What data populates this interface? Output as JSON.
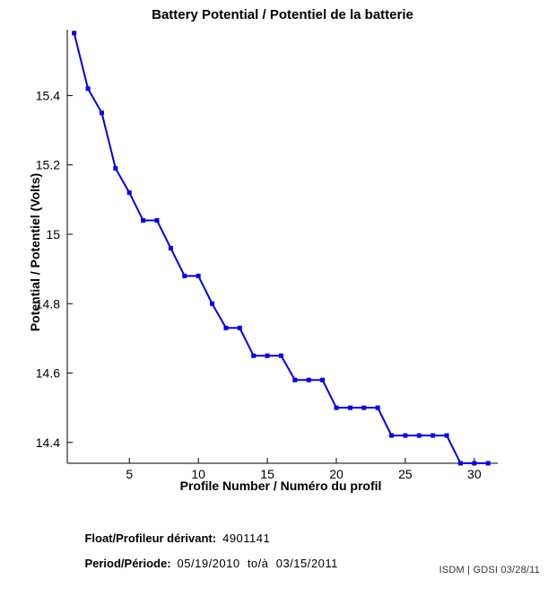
{
  "chart_data": {
    "type": "line",
    "title": "Battery Potential / Potentiel de la batterie",
    "xlabel": "Profile Number / Numéro du profil",
    "ylabel": "Potential / Potentiel (Volts)",
    "x": [
      1,
      2,
      3,
      4,
      5,
      6,
      7,
      8,
      9,
      10,
      11,
      12,
      13,
      14,
      15,
      16,
      17,
      18,
      19,
      20,
      21,
      22,
      23,
      24,
      25,
      26,
      27,
      28,
      29,
      30,
      31
    ],
    "y": [
      15.58,
      15.42,
      15.35,
      15.19,
      15.12,
      15.04,
      15.04,
      14.96,
      14.88,
      14.88,
      14.8,
      14.73,
      14.73,
      14.65,
      14.65,
      14.65,
      14.58,
      14.58,
      14.58,
      14.5,
      14.5,
      14.5,
      14.5,
      14.42,
      14.42,
      14.42,
      14.42,
      14.42,
      14.34,
      14.34,
      14.34
    ],
    "xlim": [
      0.5,
      31.7
    ],
    "ylim": [
      14.34,
      15.59
    ],
    "xticks": [
      5,
      10,
      15,
      20,
      25,
      30
    ],
    "xtick_labels": [
      "5",
      "10",
      "15",
      "20",
      "25",
      "30"
    ],
    "yticks": [
      14.4,
      14.6,
      14.8,
      15,
      15.2,
      15.4
    ],
    "ytick_labels": [
      "14.4",
      "14.6",
      "14.8",
      "15",
      "15.2",
      "15.4"
    ],
    "line_color": "#0000EE",
    "axis_color": "#000000",
    "marker": "square",
    "marker_size": 5,
    "grid": false,
    "legend_position": "none"
  },
  "annotations": {
    "float_label": "Float/Profileur dérivant:",
    "float_value": "4901141",
    "period_label": "Period/Période:",
    "period_value": "05/19/2010  to/à  03/15/2011"
  },
  "footer": "ISDM | GDSI 03/28/11"
}
